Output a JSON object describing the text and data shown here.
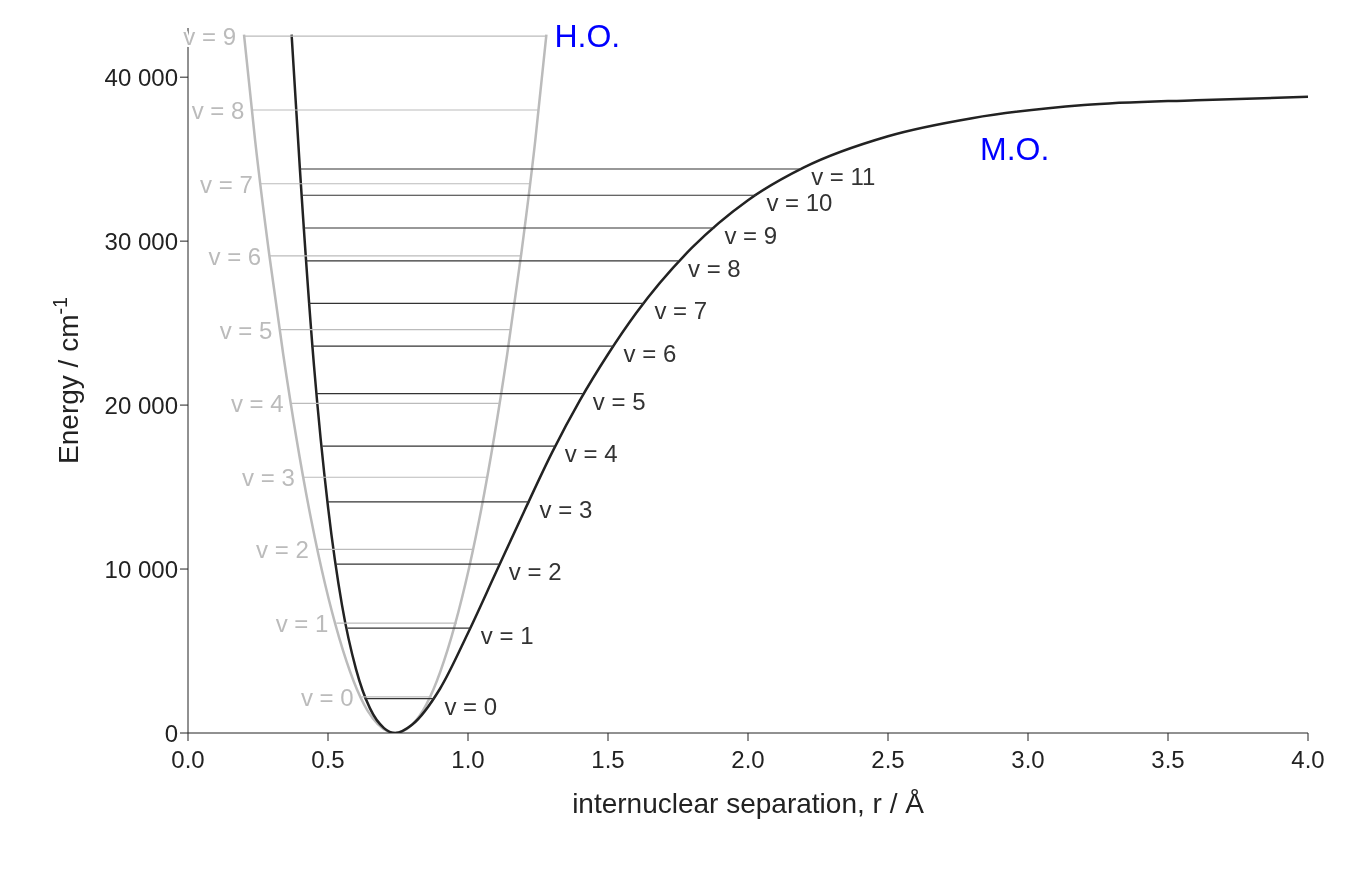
{
  "chart_data": {
    "type": "line",
    "xlabel": "internuclear separation, r / Å",
    "ylabel": "Energy / cm$^{-1}$",
    "xlim": [
      0,
      4
    ],
    "xticks": [
      {
        "value": 0,
        "label": "0.0"
      },
      0.5,
      {
        "value": 1,
        "label": "1.0"
      },
      1.5,
      {
        "value": 2,
        "label": "2.0"
      },
      2.5,
      {
        "value": 3,
        "label": "3.0"
      },
      3.5,
      {
        "value": 4,
        "label": "4.0"
      }
    ],
    "ylim": [
      0,
      43000
    ],
    "yticks": [
      0,
      {
        "value": 10000,
        "label": "10 000"
      },
      {
        "value": 20000,
        "label": "20 000"
      },
      {
        "value": 30000,
        "label": "30 000"
      },
      {
        "value": 40000,
        "label": "40 000"
      }
    ],
    "grid": false,
    "legend": false,
    "marker": "none",
    "annotations": [
      {
        "text": "H.O.",
        "x": 1.28,
        "y": 42600
      },
      {
        "text": "M.O.",
        "x": 2.8,
        "y": 37500
      }
    ],
    "series": [
      {
        "color": "#bbbbbb",
        "x": [
          0.2,
          0.24,
          0.29,
          0.34,
          0.44,
          0.54,
          0.64,
          0.74,
          0.84,
          0.94,
          1.04,
          1.14,
          1.19,
          1.24,
          1.28
        ],
        "values": [
          42600,
          36100,
          29200,
          23100,
          13000,
          5800,
          1400,
          0,
          1400,
          5800,
          13000,
          23100,
          29200,
          36100,
          42600
        ]
      },
      {
        "color": "#222222",
        "x": [
          0.37,
          0.4,
          0.45,
          0.5,
          0.55,
          0.6,
          0.65,
          0.7,
          0.74,
          0.8,
          0.9,
          1.0,
          1.1,
          1.2,
          1.3,
          1.4,
          1.5,
          1.6,
          1.8,
          2.0,
          2.2,
          2.5,
          2.8,
          3.2,
          3.6,
          4.0
        ],
        "values": [
          42600,
          34300,
          22400,
          13800,
          7800,
          3900,
          1500,
          300,
          0,
          500,
          2700,
          6100,
          9800,
          13500,
          17100,
          20300,
          23100,
          25600,
          29600,
          32500,
          34500,
          36400,
          37500,
          38300,
          38600,
          38800
        ]
      },
      {
        "name": "v = 0",
        "color": "#bbbbbb",
        "x": [
          0.87,
          0.62
        ],
        "values": [
          2200,
          2200
        ]
      },
      {
        "name": "v = 1",
        "color": "#bbbbbb",
        "x": [
          0.96,
          0.53
        ],
        "values": [
          6700,
          6700
        ]
      },
      {
        "name": "v = 2",
        "color": "#bbbbbb",
        "x": [
          1.02,
          0.46
        ],
        "values": [
          11200,
          11200
        ]
      },
      {
        "name": "v = 3",
        "color": "#bbbbbb",
        "x": [
          1.07,
          0.41
        ],
        "values": [
          15600,
          15600
        ]
      },
      {
        "name": "v = 4",
        "color": "#bbbbbb",
        "x": [
          1.11,
          0.37
        ],
        "values": [
          20100,
          20100
        ]
      },
      {
        "name": "v = 5",
        "color": "#bbbbbb",
        "x": [
          1.15,
          0.33
        ],
        "values": [
          24600,
          24600
        ]
      },
      {
        "name": "v = 6",
        "color": "#bbbbbb",
        "x": [
          1.19,
          0.29
        ],
        "values": [
          29100,
          29100
        ]
      },
      {
        "name": "v = 7",
        "color": "#bbbbbb",
        "x": [
          1.22,
          0.26
        ],
        "values": [
          33500,
          33500
        ]
      },
      {
        "name": "v = 8",
        "color": "#bbbbbb",
        "x": [
          1.25,
          0.23
        ],
        "values": [
          38000,
          38000
        ]
      },
      {
        "name": "v = 9",
        "color": "#bbbbbb",
        "x": [
          1.28,
          0.2
        ],
        "values": [
          42500,
          42500
        ]
      },
      {
        "name": "v = 0",
        "color": "#333333",
        "x": [
          0.63,
          0.88
        ],
        "values": [
          2100,
          2100
        ]
      },
      {
        "name": "v = 1",
        "color": "#333333",
        "x": [
          0.57,
          1.01
        ],
        "values": [
          6400,
          6400
        ]
      },
      {
        "name": "v = 2",
        "color": "#333333",
        "x": [
          0.53,
          1.11
        ],
        "values": [
          10300,
          10300
        ]
      },
      {
        "name": "v = 3",
        "color": "#333333",
        "x": [
          0.5,
          1.22
        ],
        "values": [
          14100,
          14100
        ]
      },
      {
        "name": "v = 4",
        "color": "#333333",
        "x": [
          0.48,
          1.31
        ],
        "values": [
          17500,
          17500
        ]
      },
      {
        "name": "v = 5",
        "color": "#333333",
        "x": [
          0.46,
          1.41
        ],
        "values": [
          20700,
          20700
        ]
      },
      {
        "name": "v = 6",
        "color": "#333333",
        "x": [
          0.44,
          1.52
        ],
        "values": [
          23600,
          23600
        ]
      },
      {
        "name": "v = 7",
        "color": "#333333",
        "x": [
          0.43,
          1.63
        ],
        "values": [
          26200,
          26200
        ]
      },
      {
        "name": "v = 8",
        "color": "#333333",
        "x": [
          0.42,
          1.75
        ],
        "values": [
          28800,
          28800
        ]
      },
      {
        "name": "v = 9",
        "color": "#333333",
        "x": [
          0.41,
          1.88
        ],
        "values": [
          30800,
          30800
        ]
      },
      {
        "name": "v = 10",
        "color": "#333333",
        "x": [
          0.41,
          2.03
        ],
        "values": [
          32800,
          32800
        ]
      },
      {
        "name": "v = 11",
        "color": "#333333",
        "x": [
          0.4,
          2.19
        ],
        "values": [
          34400,
          34400
        ]
      }
    ]
  }
}
